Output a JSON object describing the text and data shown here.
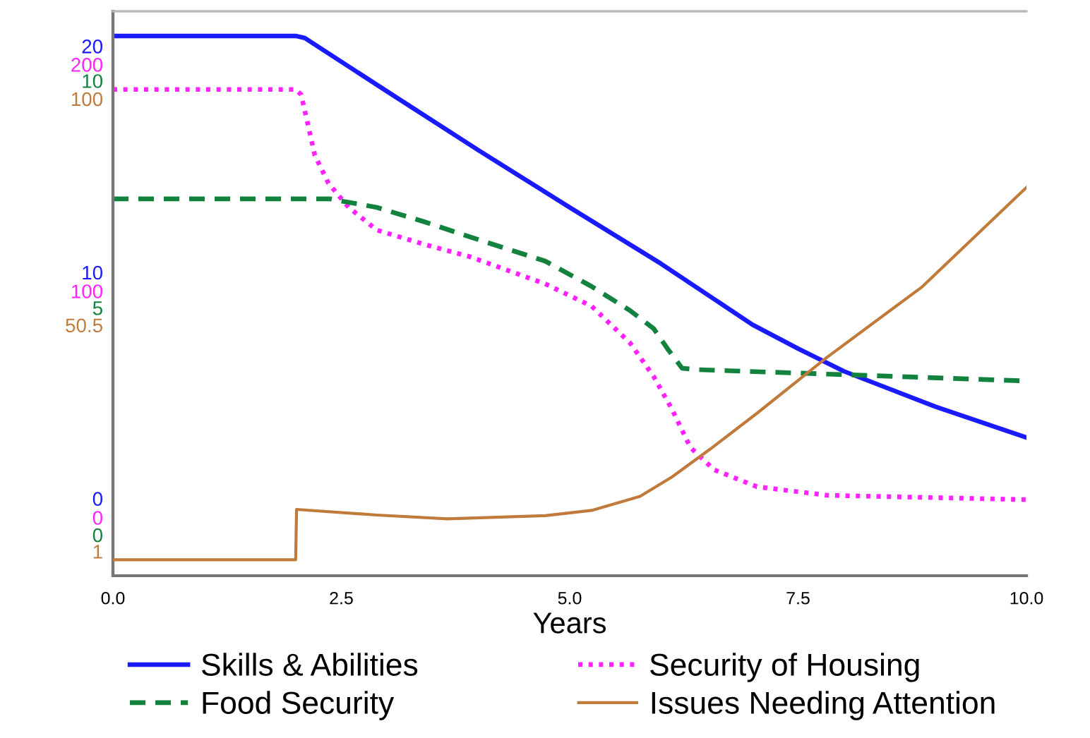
{
  "chart_data": [
    {
      "type": "line",
      "xlabel": "Years",
      "xlim": [
        0,
        10
      ],
      "xticks": [
        {
          "value": 0,
          "label": "0.0"
        },
        {
          "value": 2.5,
          "label": "2.5"
        },
        {
          "value": 5,
          "label": "5.0"
        },
        {
          "value": 7.5,
          "label": "7.5"
        },
        {
          "value": 10,
          "label": "10.0"
        }
      ],
      "ylim": [
        -3.41,
        21.54
      ],
      "yticks": [
        0,
        10,
        20
      ],
      "y2lim": [
        -25.7,
        223.5
      ],
      "y2ticks": [
        0,
        100,
        200
      ],
      "grid": false,
      "legend": "bottom",
      "series": [
        {
          "name": "Skills & Abilities",
          "color": "#1a1aff",
          "line_style": "solid",
          "x": [
            0,
            2,
            2.1,
            3,
            4,
            5,
            6,
            7,
            7.5,
            8,
            9,
            10
          ],
          "values": [
            20.45,
            20.45,
            20.36,
            18.0,
            15.4,
            12.87,
            10.38,
            7.69,
            6.63,
            5.63,
            4.07,
            2.7
          ]
        },
        {
          "name": "Security of Housing",
          "color": "#ff22ff",
          "line_style": "dotted",
          "axis": "y2",
          "x": [
            0,
            2,
            2.06,
            2.13,
            2.21,
            2.36,
            2.58,
            2.89,
            3.4,
            3.91,
            4.73,
            5.24,
            5.66,
            5.92,
            6.12,
            6.32,
            6.58,
            7.05,
            7.82,
            10
          ],
          "values": [
            189,
            189,
            186.7,
            174.3,
            159.9,
            147.5,
            136.9,
            126.9,
            120.7,
            115.1,
            103.2,
            93.3,
            77.1,
            62.2,
            47.8,
            31.0,
            21.1,
            13.6,
            9.8,
            7.9
          ]
        }
      ]
    },
    {
      "type": "line",
      "tick_labels": "y",
      "xlim": [
        0,
        10
      ],
      "ylim": [
        -0.9,
        11.53
      ],
      "yticks": [
        0,
        5,
        10
      ],
      "y2lim": [
        -4.34,
        119.15
      ],
      "y2ticks": [
        1,
        50.5,
        100
      ],
      "grid": false,
      "legend": "bottom",
      "series": [
        {
          "name": "Food Security",
          "color": "#12823e",
          "line_style": "dashed",
          "x": [
            0,
            2.37,
            2.89,
            3.4,
            3.91,
            4.73,
            5.24,
            5.66,
            5.92,
            6.07,
            6.23,
            6.38,
            7.82,
            10
          ],
          "values": [
            7.4,
            7.4,
            7.21,
            6.9,
            6.56,
            6.03,
            5.47,
            4.94,
            4.54,
            4.1,
            3.67,
            3.64,
            3.54,
            3.39
          ]
        },
        {
          "name": "Issues Needing Attention",
          "color": "#c07a3a",
          "line_style": "solid",
          "axis": "y2",
          "x": [
            0,
            2,
            2.01,
            2.89,
            3.66,
            4.73,
            5.24,
            5.77,
            6.12,
            6.54,
            7.05,
            7.82,
            8.86,
            10
          ],
          "values": [
            -0.85,
            -0.85,
            10.17,
            8.93,
            8.1,
            8.8,
            9.95,
            13.04,
            17.27,
            23.4,
            31.2,
            43.5,
            58.9,
            80.6
          ]
        }
      ]
    }
  ]
}
